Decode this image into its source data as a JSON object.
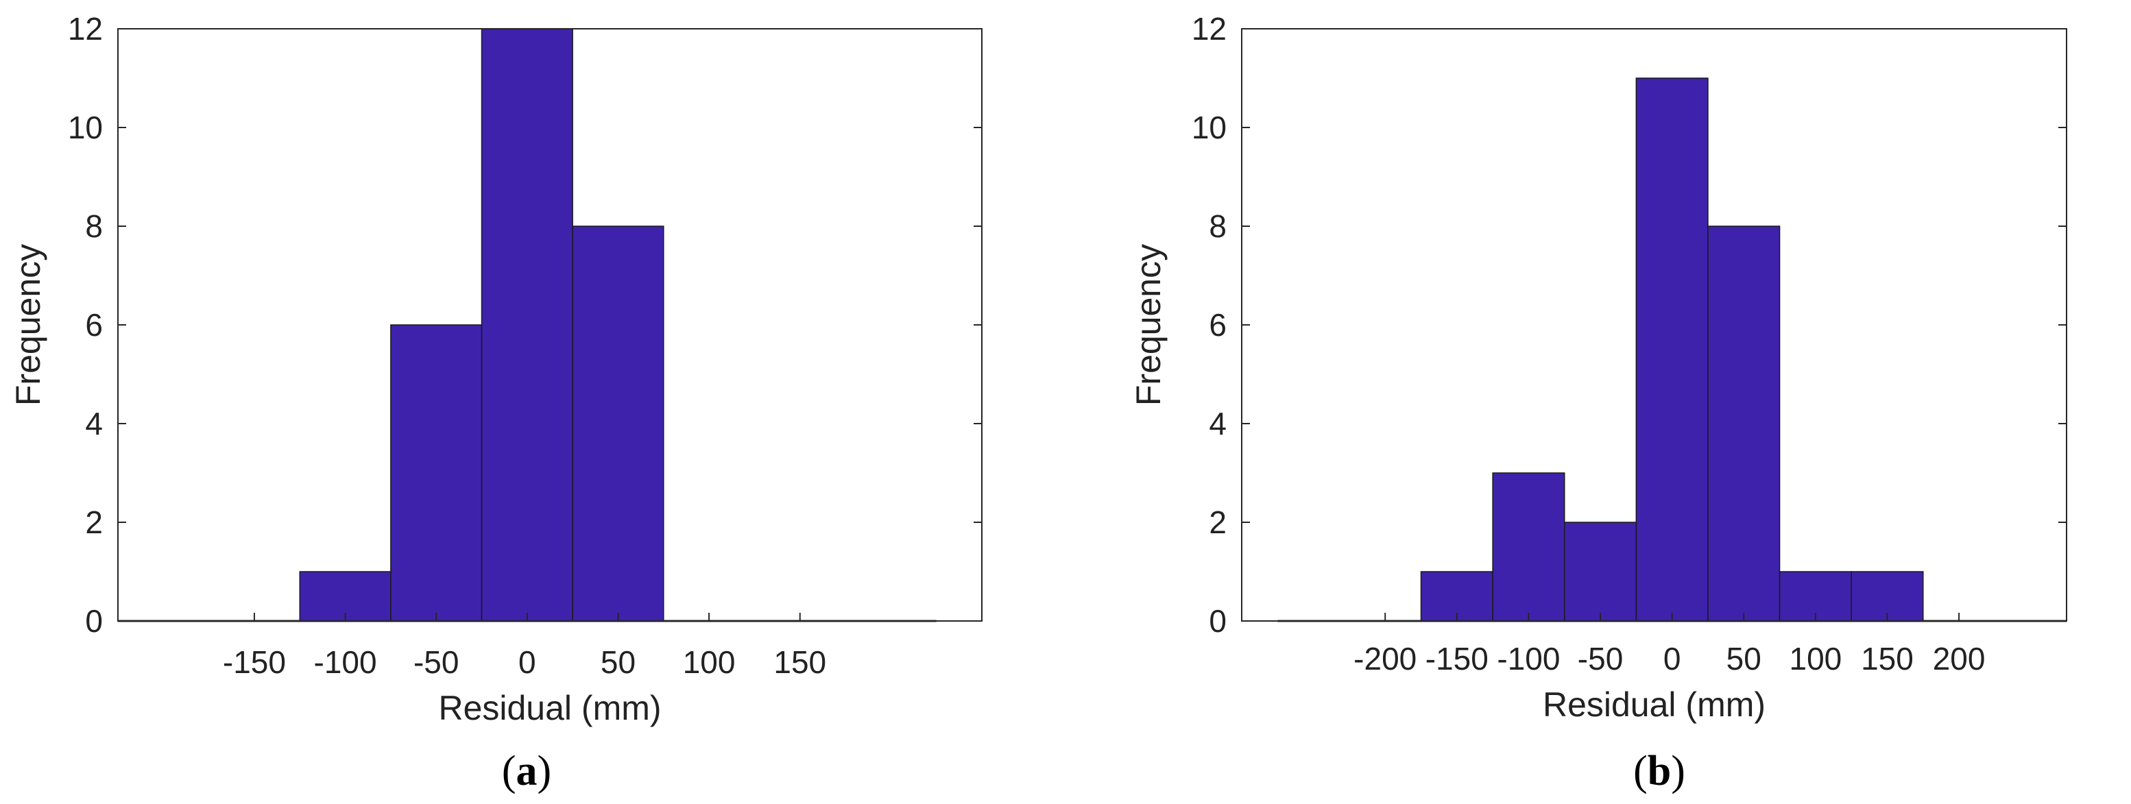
{
  "colors": {
    "bar_fill": "#3f22ab",
    "bar_edge": "#1a1a1a",
    "axis": "#262626",
    "baseline": "#333333"
  },
  "chart_data": [
    {
      "type": "bar",
      "panel": "a",
      "xlabel": "Residual (mm)",
      "ylabel": "Frequency",
      "xlim": [
        -225,
        250
      ],
      "ylim": [
        0,
        12
      ],
      "xticks": [
        -150,
        -100,
        -50,
        0,
        50,
        100,
        150
      ],
      "yticks": [
        0,
        2,
        4,
        6,
        8,
        10,
        12
      ],
      "bin_width": 50,
      "x": [
        -200,
        -150,
        -100,
        -50,
        0,
        50,
        100,
        150,
        200
      ],
      "values": [
        0,
        0,
        1,
        6,
        12,
        8,
        0,
        0,
        0
      ],
      "grid": false,
      "box": true
    },
    {
      "type": "bar",
      "panel": "b",
      "xlabel": "Residual (mm)",
      "ylabel": "Frequency",
      "xlim": [
        -300,
        275
      ],
      "ylim": [
        0,
        12
      ],
      "xticks": [
        -200,
        -150,
        -100,
        -50,
        0,
        50,
        100,
        150,
        200
      ],
      "yticks": [
        0,
        2,
        4,
        6,
        8,
        10,
        12
      ],
      "bin_width": 50,
      "x": [
        -250,
        -200,
        -150,
        -100,
        -50,
        0,
        50,
        100,
        150,
        200,
        250
      ],
      "values": [
        0,
        0,
        1,
        3,
        2,
        11,
        8,
        1,
        1,
        0,
        0
      ],
      "grid": false,
      "box": true
    }
  ],
  "captions": {
    "a": {
      "open": "(",
      "letter": "a",
      "close": ")"
    },
    "b": {
      "open": "(",
      "letter": "b",
      "close": ")"
    }
  }
}
